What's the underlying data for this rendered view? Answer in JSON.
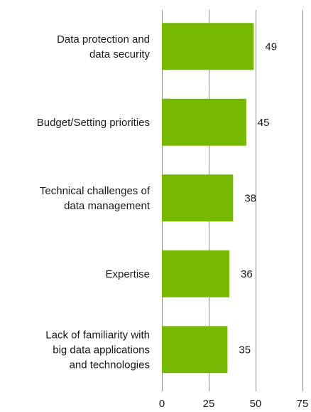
{
  "chart_data": {
    "type": "bar",
    "orientation": "horizontal",
    "title": "",
    "xlabel": "",
    "ylabel": "",
    "categories": [
      [
        "Data protection and",
        "data security"
      ],
      [
        "Budget/Setting priorities"
      ],
      [
        "Technical challenges of",
        "data management"
      ],
      [
        "Expertise"
      ],
      [
        "Lack of familiarity with",
        "big data applications",
        "and technologies"
      ]
    ],
    "values": [
      49,
      45,
      38,
      36,
      35
    ],
    "value_labels": [
      "49",
      "45",
      "38",
      "36",
      "35"
    ],
    "xlim": [
      0,
      75
    ],
    "xticks": [
      0,
      25,
      50,
      75
    ],
    "xtick_labels": [
      "0",
      "25",
      "50",
      "75"
    ],
    "grid": "vertical",
    "legend": "none",
    "colors": {
      "bar": "#77b800",
      "grid": "#8c8c8c"
    }
  }
}
